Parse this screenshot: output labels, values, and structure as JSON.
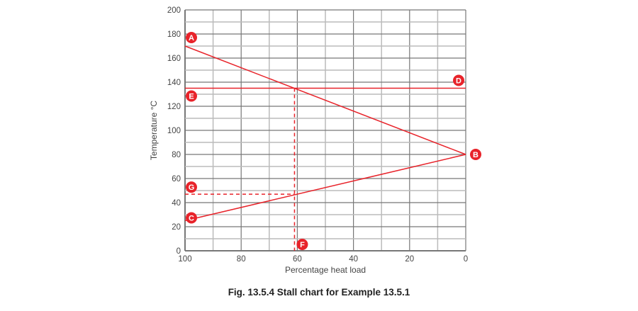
{
  "chart_data": {
    "type": "line",
    "caption": "Fig. 13.5.4 Stall chart for Example 13.5.1",
    "xlabel": "Percentage heat load",
    "ylabel": "Temperature °C",
    "xlim": [
      100,
      0
    ],
    "ylim": [
      0,
      200
    ],
    "x_reversed": true,
    "grid": true,
    "x_ticks": [
      "100",
      "80",
      "60",
      "40",
      "20",
      "0"
    ],
    "y_ticks": [
      "0",
      "20",
      "40",
      "60",
      "80",
      "100",
      "120",
      "140",
      "160",
      "180",
      "200"
    ],
    "color": "#e8232a",
    "series": [
      {
        "points": [
          [
            100,
            170
          ],
          [
            0,
            80
          ]
        ],
        "style": "solid"
      },
      {
        "points": [
          [
            100,
            25
          ],
          [
            0,
            80
          ]
        ],
        "style": "solid"
      },
      {
        "points": [
          [
            100,
            135
          ],
          [
            0,
            135
          ]
        ],
        "style": "solid"
      },
      {
        "points": [
          [
            61,
            135
          ],
          [
            61,
            0
          ]
        ],
        "style": "dashed"
      },
      {
        "points": [
          [
            100,
            47
          ],
          [
            61,
            47
          ]
        ],
        "style": "dashed"
      }
    ],
    "annotations": [
      {
        "label": "A",
        "x": 100,
        "y": 170
      },
      {
        "label": "B",
        "x": 0,
        "y": 80
      },
      {
        "label": "C",
        "x": 100,
        "y": 25
      },
      {
        "label": "D",
        "x": 0,
        "y": 135
      },
      {
        "label": "E",
        "x": 100,
        "y": 135
      },
      {
        "label": "F",
        "x": 61,
        "y": 0
      },
      {
        "label": "G",
        "x": 100,
        "y": 47
      }
    ]
  }
}
